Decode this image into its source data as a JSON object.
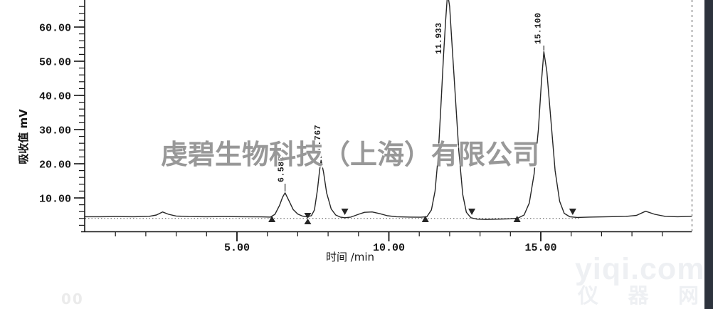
{
  "watermarks": {
    "center": "虔碧生物科技（上海）有限公司",
    "corner_line1": "yiqi.com",
    "corner_line2_chars": [
      "仪",
      "器",
      "网"
    ],
    "ghost": "00"
  },
  "colors": {
    "trace": "#262626",
    "axis": "#161616",
    "baseline_dots": "#555555",
    "edge_strip": "#2d333d",
    "watermark_gray": "#8a8a8a",
    "watermark_corner": "#eef0f3"
  },
  "chart_data": {
    "type": "line",
    "title": "",
    "xlabel": "时间  /min",
    "ylabel": "吸收值 mV",
    "xlim": [
      0,
      19.96
    ],
    "ylim": [
      0,
      67.9
    ],
    "grid": false,
    "x_major_ticks": [
      5,
      10,
      15
    ],
    "x_major_labels": [
      "5.00",
      "10.00",
      "15.00"
    ],
    "x_minor_step_min": 1,
    "y_major_ticks": [
      10,
      20,
      30,
      40,
      50,
      60
    ],
    "y_major_labels": [
      "10.00",
      "20.00",
      "30.00",
      "40.00",
      "50.00",
      "60.00"
    ],
    "y_minor_step_mv": 2,
    "baseline_mv": 4.0,
    "peaks": [
      {
        "rt_label": "6.583",
        "t_min": 6.583,
        "apex_mv": 11.5
      },
      {
        "rt_label": "7.767",
        "t_min": 7.767,
        "apex_mv": 21.0
      },
      {
        "rt_label": "11.933",
        "t_min": 11.933,
        "apex_mv": 68.0,
        "clipped_at_top": true
      },
      {
        "rt_label": "15.100",
        "t_min": 15.1,
        "apex_mv": 52.8
      }
    ],
    "integration_markers": [
      {
        "t_min": 6.15,
        "type": "start"
      },
      {
        "t_min": 7.33,
        "type": "split"
      },
      {
        "t_min": 8.55,
        "type": "end"
      },
      {
        "t_min": 11.2,
        "type": "start"
      },
      {
        "t_min": 12.73,
        "type": "end"
      },
      {
        "t_min": 14.22,
        "type": "start"
      },
      {
        "t_min": 16.05,
        "type": "end"
      }
    ],
    "trace": [
      [
        0.0,
        4.5
      ],
      [
        0.5,
        4.5
      ],
      [
        1.0,
        4.55
      ],
      [
        1.6,
        4.5
      ],
      [
        2.1,
        4.6
      ],
      [
        2.35,
        5.0
      ],
      [
        2.55,
        5.9
      ],
      [
        2.75,
        5.2
      ],
      [
        3.0,
        4.7
      ],
      [
        3.4,
        4.55
      ],
      [
        4.0,
        4.5
      ],
      [
        4.6,
        4.55
      ],
      [
        5.2,
        4.5
      ],
      [
        5.8,
        4.45
      ],
      [
        6.1,
        4.4
      ],
      [
        6.25,
        5.2
      ],
      [
        6.4,
        7.8
      ],
      [
        6.5,
        10.2
      ],
      [
        6.583,
        11.5
      ],
      [
        6.7,
        9.4
      ],
      [
        6.85,
        6.6
      ],
      [
        7.0,
        5.3
      ],
      [
        7.15,
        4.7
      ],
      [
        7.3,
        4.45
      ],
      [
        7.45,
        4.8
      ],
      [
        7.55,
        6.5
      ],
      [
        7.65,
        12.5
      ],
      [
        7.72,
        18.0
      ],
      [
        7.767,
        21.0
      ],
      [
        7.85,
        17.5
      ],
      [
        7.95,
        11.5
      ],
      [
        8.1,
        6.8
      ],
      [
        8.25,
        5.0
      ],
      [
        8.4,
        4.4
      ],
      [
        8.55,
        4.2
      ],
      [
        8.75,
        4.4
      ],
      [
        9.0,
        5.2
      ],
      [
        9.2,
        5.8
      ],
      [
        9.45,
        5.9
      ],
      [
        9.7,
        5.4
      ],
      [
        9.95,
        4.8
      ],
      [
        10.25,
        4.5
      ],
      [
        10.7,
        4.4
      ],
      [
        11.05,
        4.35
      ],
      [
        11.25,
        4.5
      ],
      [
        11.4,
        6.5
      ],
      [
        11.52,
        12
      ],
      [
        11.62,
        22
      ],
      [
        11.72,
        38
      ],
      [
        11.8,
        52
      ],
      [
        11.87,
        62
      ],
      [
        11.933,
        70
      ],
      [
        12.0,
        66
      ],
      [
        12.07,
        56
      ],
      [
        12.17,
        42
      ],
      [
        12.3,
        24
      ],
      [
        12.43,
        11
      ],
      [
        12.55,
        5.8
      ],
      [
        12.7,
        4.2
      ],
      [
        12.9,
        3.8
      ],
      [
        13.2,
        3.7
      ],
      [
        13.6,
        3.8
      ],
      [
        14.0,
        3.9
      ],
      [
        14.25,
        4.1
      ],
      [
        14.45,
        5.0
      ],
      [
        14.62,
        8.5
      ],
      [
        14.78,
        17
      ],
      [
        14.92,
        30
      ],
      [
        15.02,
        44
      ],
      [
        15.1,
        52.8
      ],
      [
        15.2,
        47
      ],
      [
        15.33,
        33
      ],
      [
        15.47,
        18
      ],
      [
        15.62,
        9
      ],
      [
        15.77,
        5.5
      ],
      [
        15.95,
        4.5
      ],
      [
        16.2,
        4.3
      ],
      [
        16.6,
        4.4
      ],
      [
        17.2,
        4.5
      ],
      [
        17.8,
        4.6
      ],
      [
        18.15,
        4.9
      ],
      [
        18.45,
        6.1
      ],
      [
        18.75,
        5.2
      ],
      [
        19.1,
        4.6
      ],
      [
        19.5,
        4.5
      ],
      [
        19.95,
        4.6
      ]
    ]
  }
}
